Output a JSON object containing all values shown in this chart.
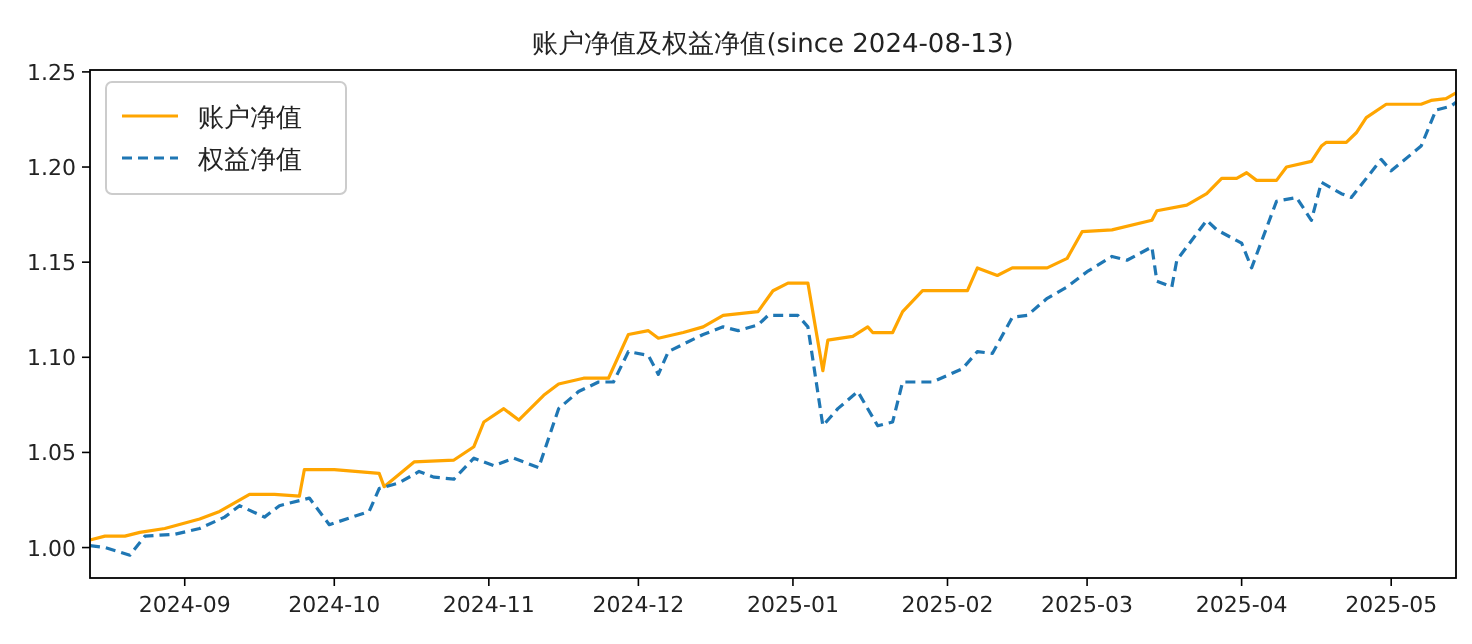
{
  "chart_data": {
    "type": "line",
    "title": "账户净值及权益净值(since 2024-08-13)",
    "xlim": [
      "2024-08-13",
      "2025-05-14"
    ],
    "xticks": [
      {
        "value": "2024-09-01",
        "label": "2024-09"
      },
      {
        "value": "2024-10-01",
        "label": "2024-10"
      },
      {
        "value": "2024-11-01",
        "label": "2024-11"
      },
      {
        "value": "2024-12-01",
        "label": "2024-12"
      },
      {
        "value": "2025-01-01",
        "label": "2025-01"
      },
      {
        "value": "2025-02-01",
        "label": "2025-02"
      },
      {
        "value": "2025-03-01",
        "label": "2025-03"
      },
      {
        "value": "2025-04-01",
        "label": "2025-04"
      },
      {
        "value": "2025-05-01",
        "label": "2025-05"
      }
    ],
    "ylim": [
      0.984,
      1.251
    ],
    "yticks": [
      {
        "value": 1.0,
        "label": "1.00"
      },
      {
        "value": 1.05,
        "label": "1.05"
      },
      {
        "value": 1.1,
        "label": "1.10"
      },
      {
        "value": 1.15,
        "label": "1.15"
      },
      {
        "value": 1.2,
        "label": "1.20"
      },
      {
        "value": 1.25,
        "label": "1.25"
      }
    ],
    "grid": false,
    "legend": "top left",
    "marker": "none",
    "series": [
      {
        "name": "账户净值",
        "color": "#ffa500",
        "line_style": "solid",
        "x": [
          "2024-08-13",
          "2024-08-16",
          "2024-08-20",
          "2024-08-23",
          "2024-08-28",
          "2024-09-04",
          "2024-09-08",
          "2024-09-14",
          "2024-09-19",
          "2024-09-24",
          "2024-09-25",
          "2024-10-01",
          "2024-10-10",
          "2024-10-11",
          "2024-10-17",
          "2024-10-25",
          "2024-10-29",
          "2024-10-31",
          "2024-11-04",
          "2024-11-07",
          "2024-11-12",
          "2024-11-15",
          "2024-11-20",
          "2024-11-25",
          "2024-11-29",
          "2024-12-03",
          "2024-12-05",
          "2024-12-10",
          "2024-12-14",
          "2024-12-18",
          "2024-12-25",
          "2024-12-28",
          "2024-12-31",
          "2025-01-04",
          "2025-01-07",
          "2025-01-08",
          "2025-01-13",
          "2025-01-16",
          "2025-01-17",
          "2025-01-21",
          "2025-01-23",
          "2025-01-27",
          "2025-02-05",
          "2025-02-07",
          "2025-02-11",
          "2025-02-14",
          "2025-02-21",
          "2025-02-25",
          "2025-02-28",
          "2025-03-06",
          "2025-03-14",
          "2025-03-15",
          "2025-03-21",
          "2025-03-25",
          "2025-03-28",
          "2025-03-31",
          "2025-04-02",
          "2025-04-04",
          "2025-04-08",
          "2025-04-10",
          "2025-04-15",
          "2025-04-17",
          "2025-04-18",
          "2025-04-22",
          "2025-04-24",
          "2025-04-26",
          "2025-04-30",
          "2025-05-07",
          "2025-05-09",
          "2025-05-12",
          "2025-05-14"
        ],
        "values": [
          1.004,
          1.006,
          1.006,
          1.008,
          1.01,
          1.015,
          1.019,
          1.028,
          1.028,
          1.027,
          1.041,
          1.041,
          1.039,
          1.032,
          1.045,
          1.046,
          1.053,
          1.066,
          1.073,
          1.067,
          1.08,
          1.086,
          1.089,
          1.089,
          1.112,
          1.114,
          1.11,
          1.113,
          1.116,
          1.122,
          1.124,
          1.135,
          1.139,
          1.139,
          1.093,
          1.109,
          1.111,
          1.116,
          1.113,
          1.113,
          1.124,
          1.135,
          1.135,
          1.147,
          1.143,
          1.147,
          1.147,
          1.152,
          1.166,
          1.167,
          1.172,
          1.177,
          1.18,
          1.186,
          1.194,
          1.194,
          1.197,
          1.193,
          1.193,
          1.2,
          1.203,
          1.211,
          1.213,
          1.213,
          1.218,
          1.226,
          1.233,
          1.233,
          1.235,
          1.236,
          1.239
        ]
      },
      {
        "name": "权益净值",
        "color": "#1f77b4",
        "line_style": "dashed",
        "x": [
          "2024-08-13",
          "2024-08-16",
          "2024-08-21",
          "2024-08-24",
          "2024-08-30",
          "2024-09-04",
          "2024-09-09",
          "2024-09-12",
          "2024-09-17",
          "2024-09-20",
          "2024-09-26",
          "2024-09-30",
          "2024-10-08",
          "2024-10-10",
          "2024-10-14",
          "2024-10-18",
          "2024-10-21",
          "2024-10-25",
          "2024-10-29",
          "2024-11-02",
          "2024-11-06",
          "2024-11-11",
          "2024-11-15",
          "2024-11-19",
          "2024-11-23",
          "2024-11-26",
          "2024-11-29",
          "2024-12-03",
          "2024-12-05",
          "2024-12-07",
          "2024-12-14",
          "2024-12-18",
          "2024-12-21",
          "2024-12-25",
          "2024-12-27",
          "2025-01-02",
          "2025-01-04",
          "2025-01-07",
          "2025-01-10",
          "2025-01-14",
          "2025-01-18",
          "2025-01-21",
          "2025-01-23",
          "2025-01-29",
          "2025-02-04",
          "2025-02-07",
          "2025-02-10",
          "2025-02-14",
          "2025-02-17",
          "2025-02-21",
          "2025-02-25",
          "2025-03-01",
          "2025-03-06",
          "2025-03-09",
          "2025-03-14",
          "2025-03-15",
          "2025-03-18",
          "2025-03-19",
          "2025-03-25",
          "2025-03-27",
          "2025-04-01",
          "2025-04-03",
          "2025-04-08",
          "2025-04-12",
          "2025-04-15",
          "2025-04-17",
          "2025-04-21",
          "2025-04-23",
          "2025-04-29",
          "2025-05-01",
          "2025-05-07",
          "2025-05-10",
          "2025-05-13",
          "2025-05-14"
        ],
        "values": [
          1.001,
          1.0,
          0.996,
          1.006,
          1.007,
          1.01,
          1.016,
          1.022,
          1.016,
          1.022,
          1.026,
          1.012,
          1.019,
          1.031,
          1.034,
          1.04,
          1.037,
          1.036,
          1.047,
          1.043,
          1.047,
          1.042,
          1.073,
          1.082,
          1.087,
          1.087,
          1.103,
          1.101,
          1.091,
          1.103,
          1.112,
          1.116,
          1.114,
          1.117,
          1.122,
          1.122,
          1.116,
          1.064,
          1.073,
          1.082,
          1.064,
          1.066,
          1.087,
          1.087,
          1.094,
          1.103,
          1.102,
          1.121,
          1.122,
          1.131,
          1.137,
          1.145,
          1.153,
          1.151,
          1.158,
          1.14,
          1.137,
          1.151,
          1.172,
          1.167,
          1.16,
          1.147,
          1.182,
          1.184,
          1.172,
          1.192,
          1.186,
          1.184,
          1.204,
          1.198,
          1.211,
          1.23,
          1.232,
          1.234
        ]
      }
    ]
  }
}
